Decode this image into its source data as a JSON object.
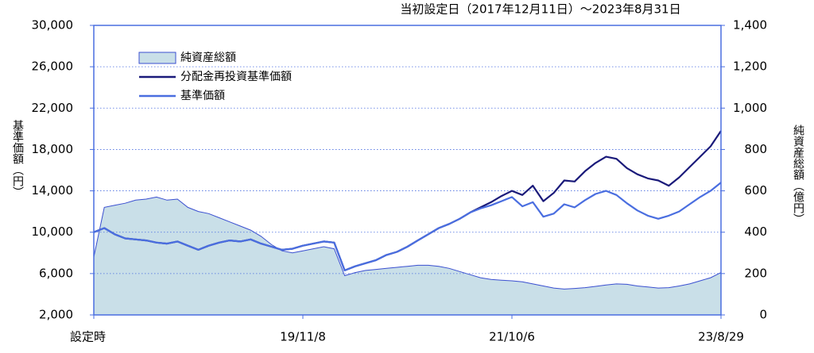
{
  "chart_data": {
    "type": "line",
    "title": "当初設定日（2017年12月11日）～2023年8月31日",
    "y_label": "基準価額（円）",
    "y2_label": "純資産総額（億円）",
    "categories": [
      "設定時",
      null,
      null,
      null,
      null,
      null,
      null,
      null,
      null,
      null,
      null,
      null,
      null,
      null,
      null,
      null,
      null,
      null,
      null,
      null,
      "19/11/8",
      null,
      null,
      null,
      null,
      null,
      null,
      null,
      null,
      null,
      null,
      null,
      null,
      null,
      null,
      null,
      null,
      null,
      null,
      null,
      "21/10/6",
      null,
      null,
      null,
      null,
      null,
      null,
      null,
      null,
      null,
      null,
      null,
      null,
      null,
      null,
      null,
      null,
      null,
      null,
      null,
      "23/8/29"
    ],
    "series": [
      {
        "name": "純資産総額",
        "type": "area",
        "axis": "y2",
        "color": "#c9dfe8",
        "line_color": "#3a4fd0",
        "values": [
          280,
          520,
          530,
          540,
          555,
          560,
          570,
          555,
          560,
          520,
          500,
          490,
          470,
          450,
          430,
          410,
          380,
          340,
          310,
          300,
          310,
          320,
          330,
          320,
          190,
          205,
          215,
          220,
          225,
          230,
          235,
          240,
          240,
          235,
          225,
          210,
          195,
          180,
          172,
          168,
          165,
          160,
          150,
          140,
          130,
          125,
          128,
          132,
          138,
          145,
          150,
          148,
          140,
          135,
          130,
          132,
          140,
          150,
          165,
          180,
          205
        ]
      },
      {
        "name": "分配金再投資基準価額",
        "type": "line",
        "color": "#1a1a7a",
        "values": [
          10000,
          10400,
          9800,
          9400,
          9300,
          9200,
          9000,
          8900,
          9100,
          8700,
          8300,
          8700,
          9000,
          9200,
          9100,
          9300,
          8900,
          8600,
          8300,
          8400,
          8700,
          8900,
          9100,
          9000,
          6300,
          6700,
          7000,
          7300,
          7800,
          8100,
          8600,
          9200,
          9800,
          10400,
          10800,
          11300,
          11900,
          12400,
          12900,
          13500,
          14000,
          13600,
          14500,
          13000,
          13800,
          15000,
          14900,
          15900,
          16700,
          17300,
          17100,
          16200,
          15600,
          15200,
          15000,
          14500,
          15300,
          16300,
          17300,
          18300,
          19800
        ]
      },
      {
        "name": "基準価額",
        "type": "line",
        "color": "#4a6ee0",
        "values": [
          10000,
          10400,
          9800,
          9400,
          9300,
          9200,
          9000,
          8900,
          9100,
          8700,
          8300,
          8700,
          9000,
          9200,
          9100,
          9300,
          8900,
          8600,
          8300,
          8400,
          8700,
          8900,
          9100,
          9000,
          6300,
          6700,
          7000,
          7300,
          7800,
          8100,
          8600,
          9200,
          9800,
          10400,
          10800,
          11300,
          11900,
          12300,
          12600,
          13000,
          13400,
          12500,
          12900,
          11500,
          11800,
          12700,
          12400,
          13100,
          13700,
          14000,
          13600,
          12800,
          12100,
          11600,
          11300,
          11600,
          12000,
          12700,
          13400,
          14000,
          14800
        ]
      }
    ],
    "ylim": [
      2000,
      30000
    ],
    "yticks": [
      {
        "value": 2000,
        "label": "2,000"
      },
      {
        "value": 6000,
        "label": "6,000"
      },
      {
        "value": 10000,
        "label": "10,000"
      },
      {
        "value": 14000,
        "label": "14,000"
      },
      {
        "value": 18000,
        "label": "18,000"
      },
      {
        "value": 22000,
        "label": "22,000"
      },
      {
        "value": 26000,
        "label": "26,000"
      },
      {
        "value": 30000,
        "label": "30,000"
      }
    ],
    "y2lim": [
      0,
      1400
    ],
    "y2ticks": [
      0,
      200,
      400,
      600,
      800,
      {
        "value": 1000,
        "label": "1,000"
      },
      {
        "value": 1200,
        "label": "1,200"
      },
      {
        "value": 1400,
        "label": "1,400"
      }
    ],
    "grid": true,
    "legend": "upper left"
  }
}
